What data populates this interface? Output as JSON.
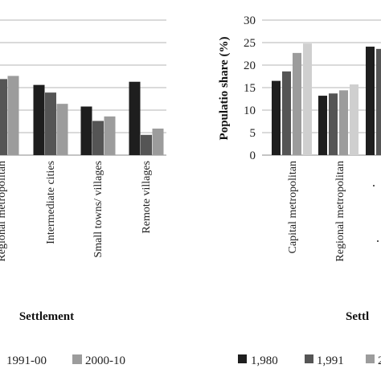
{
  "chart_data": [
    {
      "type": "bar",
      "xlabel": "Settlement",
      "ylabel": "",
      "categories": [
        "Regional metropolitan",
        "Intermediate cities",
        "Small towns/ villages",
        "Remote villages"
      ],
      "series": [
        {
          "name": "",
          "values": [
            null,
            15.6,
            10.8,
            16.3
          ],
          "color": "#1e1e1e"
        },
        {
          "name": "1991-00",
          "values": [
            16.9,
            13.9,
            7.6,
            4.5
          ],
          "color": "#555555"
        },
        {
          "name": "2000-10",
          "values": [
            17.6,
            11.4,
            8.6,
            5.9
          ],
          "color": "#9c9c9c"
        }
      ],
      "ylim": [
        0,
        30
      ],
      "grid": true,
      "legend": "bottom"
    },
    {
      "type": "bar",
      "xlabel": "Settl",
      "ylabel": "Populatio share (%)",
      "categories": [
        "Capital metropolitan",
        "Regional metropolitan",
        "",
        ""
      ],
      "series": [
        {
          "name": "1,980",
          "values": [
            16.5,
            13.2,
            24.1,
            null
          ],
          "color": "#1e1e1e"
        },
        {
          "name": "1,991",
          "values": [
            18.6,
            13.7,
            23.6,
            null
          ],
          "color": "#555555"
        },
        {
          "name": "2",
          "values": [
            22.7,
            14.4,
            null,
            null
          ],
          "color": "#9c9c9c"
        },
        {
          "name": "",
          "values": [
            24.8,
            15.7,
            null,
            null
          ],
          "color": "#cfcfcf"
        }
      ],
      "ylim": [
        0,
        30
      ],
      "yticks": [
        0,
        5,
        10,
        15,
        20,
        25,
        30
      ],
      "grid": true,
      "legend": "bottom"
    }
  ]
}
